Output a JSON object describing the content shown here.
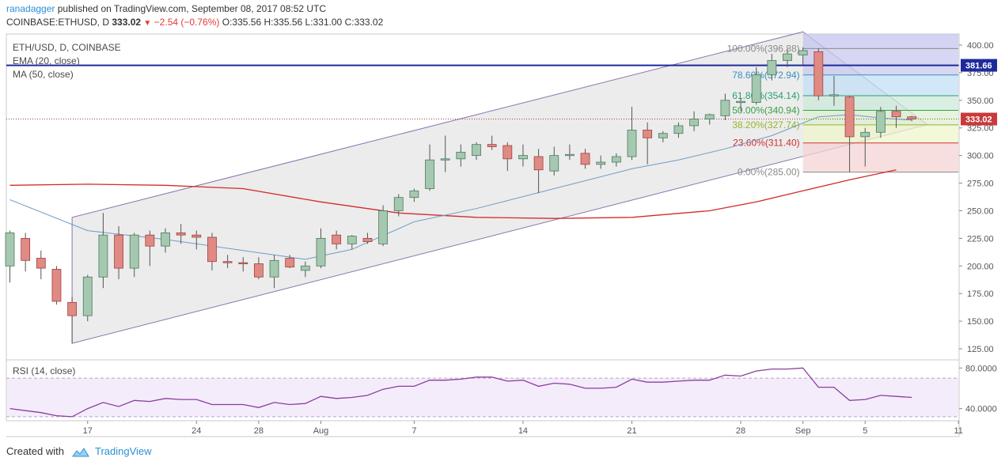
{
  "header": {
    "author": "ranadagger",
    "published_text": "published on TradingView.com, September 08, 2017 08:52 UTC",
    "symbol": "COINBASE:ETHUSD, D",
    "last": "333.02",
    "change": "−2.54 (−0.76%)",
    "open": "O:335.56",
    "high": "H:335.56",
    "low": "L:331.00",
    "close": "C:333.02"
  },
  "legend": {
    "symbol": "ETH/USD, D, COINBASE",
    "ema": "EMA (20, close)",
    "ma": "MA (50, close)",
    "rsi": "RSI (14, close)"
  },
  "footer": {
    "created_with": "Created with",
    "brand": "TradingView"
  },
  "colors": {
    "up": "#a5c8b0",
    "down": "#e08a84",
    "up_border": "#4b7a5c",
    "down_border": "#a04040",
    "ema": "#6e9cc4",
    "ma": "#d22b2b",
    "channel": "#8c74b0",
    "hline": "#1e2a9c",
    "rsi": "#8a3f9e",
    "rsi_band": "#f4ecfb"
  },
  "chart_data": {
    "type": "candlestick",
    "y_range": [
      115,
      410
    ],
    "y_ticks": [
      125,
      150,
      175,
      200,
      225,
      250,
      275,
      300,
      325,
      350,
      375,
      400
    ],
    "x_ticks": [
      {
        "label": "17",
        "day": 5
      },
      {
        "label": "24",
        "day": 12
      },
      {
        "label": "28",
        "day": 16
      },
      {
        "label": "Aug",
        "day": 20
      },
      {
        "label": "7",
        "day": 26
      },
      {
        "label": "14",
        "day": 33
      },
      {
        "label": "21",
        "day": 40
      },
      {
        "label": "28",
        "day": 47
      },
      {
        "label": "Sep",
        "day": 51
      },
      {
        "label": "5",
        "day": 55
      },
      {
        "label": "11",
        "day": 61
      }
    ],
    "candles": [
      {
        "o": 200,
        "h": 232,
        "l": 185,
        "c": 230
      },
      {
        "o": 225,
        "h": 230,
        "l": 195,
        "c": 205
      },
      {
        "o": 207,
        "h": 214,
        "l": 188,
        "c": 198
      },
      {
        "o": 197,
        "h": 200,
        "l": 165,
        "c": 168
      },
      {
        "o": 167,
        "h": 172,
        "l": 130,
        "c": 155
      },
      {
        "o": 155,
        "h": 192,
        "l": 150,
        "c": 190
      },
      {
        "o": 190,
        "h": 248,
        "l": 180,
        "c": 228
      },
      {
        "o": 228,
        "h": 236,
        "l": 188,
        "c": 198
      },
      {
        "o": 198,
        "h": 230,
        "l": 190,
        "c": 228
      },
      {
        "o": 228,
        "h": 232,
        "l": 200,
        "c": 218
      },
      {
        "o": 218,
        "h": 234,
        "l": 212,
        "c": 230
      },
      {
        "o": 230,
        "h": 238,
        "l": 220,
        "c": 228
      },
      {
        "o": 228,
        "h": 232,
        "l": 215,
        "c": 226
      },
      {
        "o": 226,
        "h": 230,
        "l": 196,
        "c": 204
      },
      {
        "o": 204,
        "h": 210,
        "l": 198,
        "c": 203
      },
      {
        "o": 203,
        "h": 208,
        "l": 195,
        "c": 202
      },
      {
        "o": 202,
        "h": 208,
        "l": 188,
        "c": 190
      },
      {
        "o": 190,
        "h": 210,
        "l": 180,
        "c": 205
      },
      {
        "o": 207,
        "h": 210,
        "l": 198,
        "c": 199
      },
      {
        "o": 196,
        "h": 204,
        "l": 190,
        "c": 200
      },
      {
        "o": 200,
        "h": 234,
        "l": 198,
        "c": 225
      },
      {
        "o": 228,
        "h": 232,
        "l": 215,
        "c": 220
      },
      {
        "o": 220,
        "h": 228,
        "l": 215,
        "c": 227
      },
      {
        "o": 225,
        "h": 230,
        "l": 220,
        "c": 222
      },
      {
        "o": 220,
        "h": 255,
        "l": 218,
        "c": 250
      },
      {
        "o": 250,
        "h": 265,
        "l": 245,
        "c": 262
      },
      {
        "o": 262,
        "h": 270,
        "l": 258,
        "c": 268
      },
      {
        "o": 270,
        "h": 310,
        "l": 268,
        "c": 296
      },
      {
        "o": 296,
        "h": 318,
        "l": 285,
        "c": 297
      },
      {
        "o": 297,
        "h": 310,
        "l": 290,
        "c": 303
      },
      {
        "o": 300,
        "h": 312,
        "l": 296,
        "c": 310
      },
      {
        "o": 310,
        "h": 318,
        "l": 305,
        "c": 308
      },
      {
        "o": 309,
        "h": 312,
        "l": 286,
        "c": 297
      },
      {
        "o": 297,
        "h": 310,
        "l": 290,
        "c": 300
      },
      {
        "o": 299,
        "h": 306,
        "l": 266,
        "c": 287
      },
      {
        "o": 286,
        "h": 308,
        "l": 282,
        "c": 300
      },
      {
        "o": 300,
        "h": 310,
        "l": 296,
        "c": 301
      },
      {
        "o": 302,
        "h": 306,
        "l": 288,
        "c": 292
      },
      {
        "o": 292,
        "h": 300,
        "l": 288,
        "c": 294
      },
      {
        "o": 294,
        "h": 302,
        "l": 290,
        "c": 299
      },
      {
        "o": 299,
        "h": 344,
        "l": 296,
        "c": 323
      },
      {
        "o": 323,
        "h": 330,
        "l": 292,
        "c": 316
      },
      {
        "o": 316,
        "h": 322,
        "l": 312,
        "c": 320
      },
      {
        "o": 320,
        "h": 330,
        "l": 316,
        "c": 327
      },
      {
        "o": 327,
        "h": 340,
        "l": 322,
        "c": 333
      },
      {
        "o": 333,
        "h": 338,
        "l": 328,
        "c": 337
      },
      {
        "o": 336,
        "h": 356,
        "l": 332,
        "c": 350
      },
      {
        "o": 348,
        "h": 352,
        "l": 340,
        "c": 349
      },
      {
        "o": 348,
        "h": 380,
        "l": 346,
        "c": 373
      },
      {
        "o": 373,
        "h": 392,
        "l": 368,
        "c": 386
      },
      {
        "o": 386,
        "h": 396,
        "l": 380,
        "c": 392
      },
      {
        "o": 391,
        "h": 398,
        "l": 382,
        "c": 395
      },
      {
        "o": 394,
        "h": 397,
        "l": 350,
        "c": 354
      },
      {
        "o": 354,
        "h": 372,
        "l": 345,
        "c": 355
      },
      {
        "o": 353,
        "h": 354,
        "l": 285,
        "c": 317
      },
      {
        "o": 317,
        "h": 325,
        "l": 290,
        "c": 321
      },
      {
        "o": 321,
        "h": 344,
        "l": 316,
        "c": 340
      },
      {
        "o": 340,
        "h": 345,
        "l": 325,
        "c": 335
      },
      {
        "o": 335,
        "h": 336,
        "l": 331,
        "c": 333
      }
    ],
    "ema20": [
      [
        0,
        260
      ],
      [
        5,
        232
      ],
      [
        10,
        224
      ],
      [
        15,
        214
      ],
      [
        19,
        206
      ],
      [
        22,
        215
      ],
      [
        26,
        240
      ],
      [
        30,
        252
      ],
      [
        35,
        270
      ],
      [
        40,
        288
      ],
      [
        43,
        296
      ],
      [
        46,
        306
      ],
      [
        49,
        318
      ],
      [
        52,
        335
      ],
      [
        54,
        337
      ],
      [
        56,
        334
      ],
      [
        58,
        332
      ]
    ],
    "ma50": [
      [
        0,
        273
      ],
      [
        5,
        274
      ],
      [
        10,
        273
      ],
      [
        15,
        270
      ],
      [
        20,
        258
      ],
      [
        25,
        248
      ],
      [
        30,
        244
      ],
      [
        35,
        243
      ],
      [
        40,
        244
      ],
      [
        45,
        250
      ],
      [
        48,
        258
      ],
      [
        51,
        268
      ],
      [
        54,
        278
      ],
      [
        57,
        287
      ]
    ],
    "channel": {
      "upper": [
        [
          4,
          244
        ],
        [
          51,
          412
        ]
      ],
      "lower": [
        [
          4,
          130
        ],
        [
          59,
          328
        ]
      ]
    },
    "resistance": 381.66,
    "current_price": 333.02,
    "fib": {
      "start_day": 51,
      "end_day": 61,
      "levels": [
        {
          "ratio": "100.00%",
          "price": 396.88,
          "label": "100.00%(396.88)",
          "color": "#8a8a8a"
        },
        {
          "ratio": "78.60%",
          "price": 372.94,
          "label": "78.60%(372.94)",
          "color": "#3a8fc0"
        },
        {
          "ratio": "61.80%",
          "price": 354.14,
          "label": "61.80%(354.14)",
          "color": "#28a070"
        },
        {
          "ratio": "50.00%",
          "price": 340.94,
          "label": "50.00%(340.94)",
          "color": "#3aa048"
        },
        {
          "ratio": "38.20%",
          "price": 327.74,
          "label": "38.20%(327.74)",
          "color": "#9ab42a"
        },
        {
          "ratio": "23.60%",
          "price": 311.4,
          "label": "23.60%(311.40)",
          "color": "#d03030"
        },
        {
          "ratio": "0.00%",
          "price": 285.0,
          "label": "0.00%(285.00)",
          "color": "#8a8a8a"
        }
      ]
    },
    "price_labels": {
      "resistance": "381.66",
      "current": "333.02"
    },
    "rsi": {
      "range": [
        28,
        88
      ],
      "ticks": [
        {
          "value": 80,
          "label": "80.0000"
        },
        {
          "value": 40,
          "label": "40.0000"
        }
      ],
      "band": [
        32,
        70
      ],
      "values": [
        40,
        38,
        36,
        33,
        32,
        40,
        46,
        42,
        48,
        47,
        50,
        49,
        49,
        44,
        44,
        44,
        41,
        46,
        44,
        45,
        52,
        50,
        51,
        53,
        59,
        62,
        62,
        68,
        68,
        69,
        71,
        71,
        67,
        68,
        62,
        65,
        64,
        60,
        60,
        61,
        69,
        66,
        66,
        67,
        68,
        68,
        73,
        72,
        77,
        79,
        79,
        80,
        61,
        61,
        48,
        49,
        53,
        52,
        51
      ]
    }
  }
}
